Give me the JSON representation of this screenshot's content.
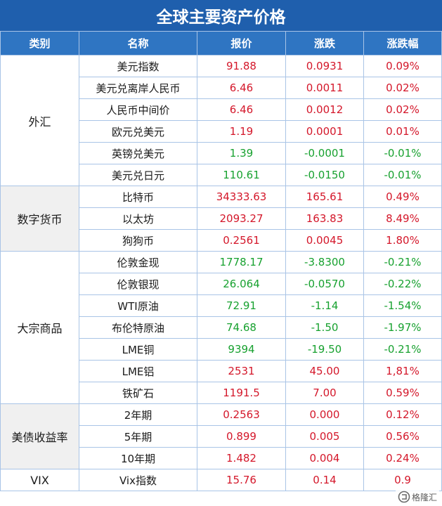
{
  "title": "全球主要资产价格",
  "columns": [
    "类别",
    "名称",
    "报价",
    "涨跌",
    "涨跌幅"
  ],
  "groups": [
    {
      "category": "外汇",
      "rows": [
        {
          "name": "美元指数",
          "price": "91.88",
          "change": "0.0931",
          "pct": "0.09%",
          "price_dir": "up",
          "change_dir": "up",
          "pct_dir": "up"
        },
        {
          "name": "美元兑离岸人民币",
          "price": "6.46",
          "change": "0.0011",
          "pct": "0.02%",
          "price_dir": "up",
          "change_dir": "up",
          "pct_dir": "up"
        },
        {
          "name": "人民币中间价",
          "price": "6.46",
          "change": "0.0012",
          "pct": "0.02%",
          "price_dir": "up",
          "change_dir": "up",
          "pct_dir": "up"
        },
        {
          "name": "欧元兑美元",
          "price": "1.19",
          "change": "0.0001",
          "pct": "0.01%",
          "price_dir": "up",
          "change_dir": "up",
          "pct_dir": "up"
        },
        {
          "name": "英镑兑美元",
          "price": "1.39",
          "change": "-0.0001",
          "pct": "-0.01%",
          "price_dir": "down",
          "change_dir": "down",
          "pct_dir": "down"
        },
        {
          "name": "美元兑日元",
          "price": "110.61",
          "change": "-0.0150",
          "pct": "-0.01%",
          "price_dir": "down",
          "change_dir": "down",
          "pct_dir": "down"
        }
      ]
    },
    {
      "category": "数字货币",
      "rows": [
        {
          "name": "比特币",
          "price": "34333.63",
          "change": "165.61",
          "pct": "0.49%",
          "price_dir": "up",
          "change_dir": "up",
          "pct_dir": "up"
        },
        {
          "name": "以太坊",
          "price": "2093.27",
          "change": "163.83",
          "pct": "8.49%",
          "price_dir": "up",
          "change_dir": "up",
          "pct_dir": "up"
        },
        {
          "name": "狗狗币",
          "price": "0.2561",
          "change": "0.0045",
          "pct": "1.80%",
          "price_dir": "up",
          "change_dir": "up",
          "pct_dir": "up"
        }
      ]
    },
    {
      "category": "大宗商品",
      "rows": [
        {
          "name": "伦敦金现",
          "price": "1778.17",
          "change": "-3.8300",
          "pct": "-0.21%",
          "price_dir": "down",
          "change_dir": "down",
          "pct_dir": "down"
        },
        {
          "name": "伦敦银现",
          "price": "26.064",
          "change": "-0.0570",
          "pct": "-0.22%",
          "price_dir": "down",
          "change_dir": "down",
          "pct_dir": "down"
        },
        {
          "name": "WTI原油",
          "price": "72.91",
          "change": "-1.14",
          "pct": "-1.54%",
          "price_dir": "down",
          "change_dir": "down",
          "pct_dir": "down"
        },
        {
          "name": "布伦特原油",
          "price": "74.68",
          "change": "-1.50",
          "pct": "-1.97%",
          "price_dir": "down",
          "change_dir": "down",
          "pct_dir": "down"
        },
        {
          "name": "LME铜",
          "price": "9394",
          "change": "-19.50",
          "pct": "-0.21%",
          "price_dir": "down",
          "change_dir": "down",
          "pct_dir": "down"
        },
        {
          "name": "LME铝",
          "price": "2531",
          "change": "45.00",
          "pct": "1,81%",
          "price_dir": "up",
          "change_dir": "up",
          "pct_dir": "up"
        },
        {
          "name": "铁矿石",
          "price": "1191.5",
          "change": "7.00",
          "pct": "0.59%",
          "price_dir": "up",
          "change_dir": "up",
          "pct_dir": "up"
        }
      ]
    },
    {
      "category": "美债收益率",
      "rows": [
        {
          "name": "2年期",
          "price": "0.2563",
          "change": "0.000",
          "pct": "0.12%",
          "price_dir": "up",
          "change_dir": "up",
          "pct_dir": "up"
        },
        {
          "name": "5年期",
          "price": "0.899",
          "change": "0.005",
          "pct": "0.56%",
          "price_dir": "up",
          "change_dir": "up",
          "pct_dir": "up"
        },
        {
          "name": "10年期",
          "price": "1.482",
          "change": "0.004",
          "pct": "0.24%",
          "price_dir": "up",
          "change_dir": "up",
          "pct_dir": "up"
        }
      ]
    },
    {
      "category": "VIX",
      "rows": [
        {
          "name": "Vix指数",
          "price": "15.76",
          "change": "0.14",
          "pct": "0.9",
          "price_dir": "up",
          "change_dir": "up",
          "pct_dir": "up"
        }
      ]
    }
  ],
  "watermark": {
    "text": "格隆汇",
    "icon": "gelonghui-logo-icon"
  },
  "colors": {
    "header": "#2f75c2",
    "title": "#1f5fad",
    "up": "#d4172a",
    "down": "#17a12f",
    "shade": "#f0f0f0"
  }
}
